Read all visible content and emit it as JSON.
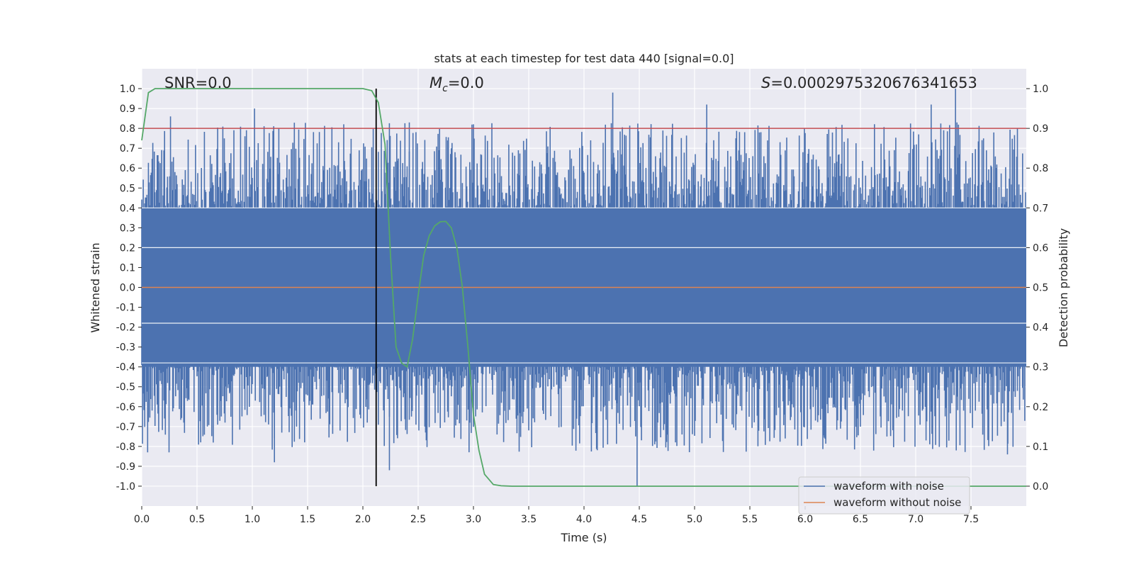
{
  "chart_data": {
    "type": "line",
    "title": "stats at each timestep for test data 440 [signal=0.0]",
    "xlabel": "Time (s)",
    "ylabel_left": "Whitened strain",
    "ylabel_right": "Detection probability",
    "xlim": [
      0.0,
      8.0
    ],
    "ylim_left": [
      -1.1,
      1.1
    ],
    "ylim_right": [
      -0.05,
      1.05
    ],
    "xticks": [
      "0.0",
      "0.5",
      "1.0",
      "1.5",
      "2.0",
      "2.5",
      "3.0",
      "3.5",
      "4.0",
      "4.5",
      "5.0",
      "5.5",
      "6.0",
      "6.5",
      "7.0",
      "7.5"
    ],
    "yticks_left": [
      "1.0",
      "0.9",
      "0.8",
      "0.7",
      "0.6",
      "0.5",
      "0.4",
      "0.3",
      "0.2",
      "0.1",
      "0.0",
      "-0.1",
      "-0.2",
      "-0.3",
      "-0.4",
      "-0.5",
      "-0.6",
      "-0.7",
      "-0.8",
      "-0.9",
      "-1.0"
    ],
    "yticks_right": [
      "1.0",
      "0.9",
      "0.8",
      "0.7",
      "0.6",
      "0.5",
      "0.4",
      "0.3",
      "0.2",
      "0.1",
      "0.0"
    ],
    "grid": true,
    "legend_position": "lower-right",
    "annotations": {
      "snr_prefix": "SNR",
      "snr_value": "=0.0",
      "mc_symbol": "M",
      "mc_sub": "c",
      "mc_value": "=0.0",
      "s_symbol": "S",
      "s_value": "=0.0002975320676341653"
    },
    "threshold_line": {
      "axis": "right",
      "y": 0.9,
      "color": "#c44e52"
    },
    "vertical_marker": {
      "x": 2.12,
      "y_range_right": [
        0.0,
        1.0
      ],
      "color": "#000000"
    },
    "series": [
      {
        "name": "waveform with noise",
        "axis": "left",
        "color": "#4c72b0",
        "description_range": [
          -1.0,
          1.0
        ],
        "peaks": [
          {
            "x": 0.26,
            "y": 0.86
          },
          {
            "x": 1.02,
            "y": 0.9
          },
          {
            "x": 2.42,
            "y": 0.83
          },
          {
            "x": 4.26,
            "y": 0.98
          },
          {
            "x": 5.11,
            "y": 0.92
          },
          {
            "x": 7.14,
            "y": 0.92
          },
          {
            "x": 7.36,
            "y": 1.0
          },
          {
            "x": 1.2,
            "y": -0.88
          },
          {
            "x": 2.24,
            "y": -0.92
          },
          {
            "x": 4.48,
            "y": -1.0
          },
          {
            "x": 7.83,
            "y": -0.84
          }
        ]
      },
      {
        "name": "waveform without noise",
        "axis": "left",
        "color": "#dd8452",
        "x": [
          0.0,
          8.0
        ],
        "y": [
          0.0,
          0.0
        ]
      },
      {
        "name": "Detection probability",
        "axis": "right",
        "color": "#55a868",
        "x": [
          0.0,
          0.06,
          0.12,
          0.2,
          0.4,
          1.0,
          1.5,
          1.9,
          2.0,
          2.08,
          2.14,
          2.2,
          2.25,
          2.3,
          2.35,
          2.4,
          2.45,
          2.5,
          2.55,
          2.6,
          2.65,
          2.7,
          2.75,
          2.8,
          2.85,
          2.9,
          2.95,
          3.0,
          3.05,
          3.1,
          3.18,
          3.25,
          3.35,
          3.5,
          4.0,
          5.0,
          6.0,
          7.0,
          8.0
        ],
        "y": [
          0.87,
          0.99,
          1.0,
          1.0,
          1.0,
          1.0,
          1.0,
          1.0,
          1.0,
          0.995,
          0.965,
          0.86,
          0.58,
          0.35,
          0.31,
          0.3,
          0.37,
          0.48,
          0.58,
          0.63,
          0.655,
          0.665,
          0.666,
          0.65,
          0.6,
          0.5,
          0.35,
          0.18,
          0.09,
          0.03,
          0.004,
          0.001,
          0.0,
          0.0,
          0.0,
          0.0,
          0.0,
          0.0,
          0.0
        ]
      }
    ]
  }
}
